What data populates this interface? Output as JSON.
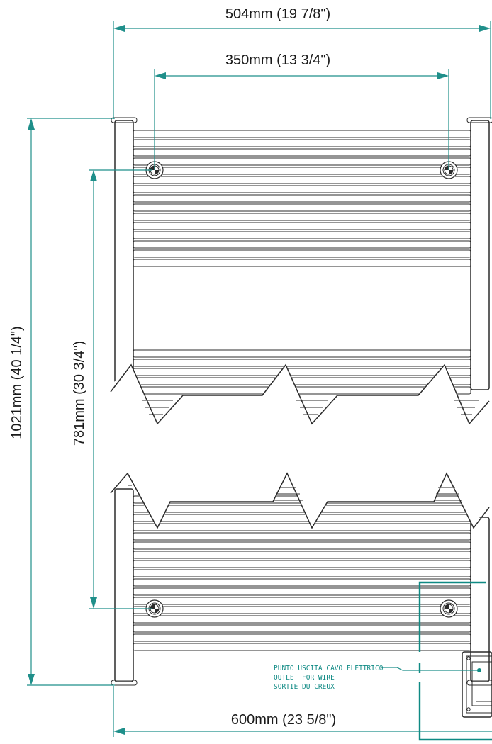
{
  "dimensions": {
    "overall_width": "504mm (19 7/8\")",
    "axis_width": "350mm (13 3/4\")",
    "overall_height": "1021mm (40 1/4\")",
    "axis_height": "781mm (30 3/4\")",
    "bottom_width": "600mm (23 5/8\")"
  },
  "note": {
    "line1": "PUNTO USCITA CAVO ELETTRICO",
    "line2": "OUTLET FOR WIRE",
    "line3": "SORTIE DU CREUX"
  },
  "colors": {
    "dimension_line": "#1f8f8a",
    "accent": "#0f8a84",
    "drawing_line": "#2b2b2b",
    "background": "#ffffff"
  }
}
